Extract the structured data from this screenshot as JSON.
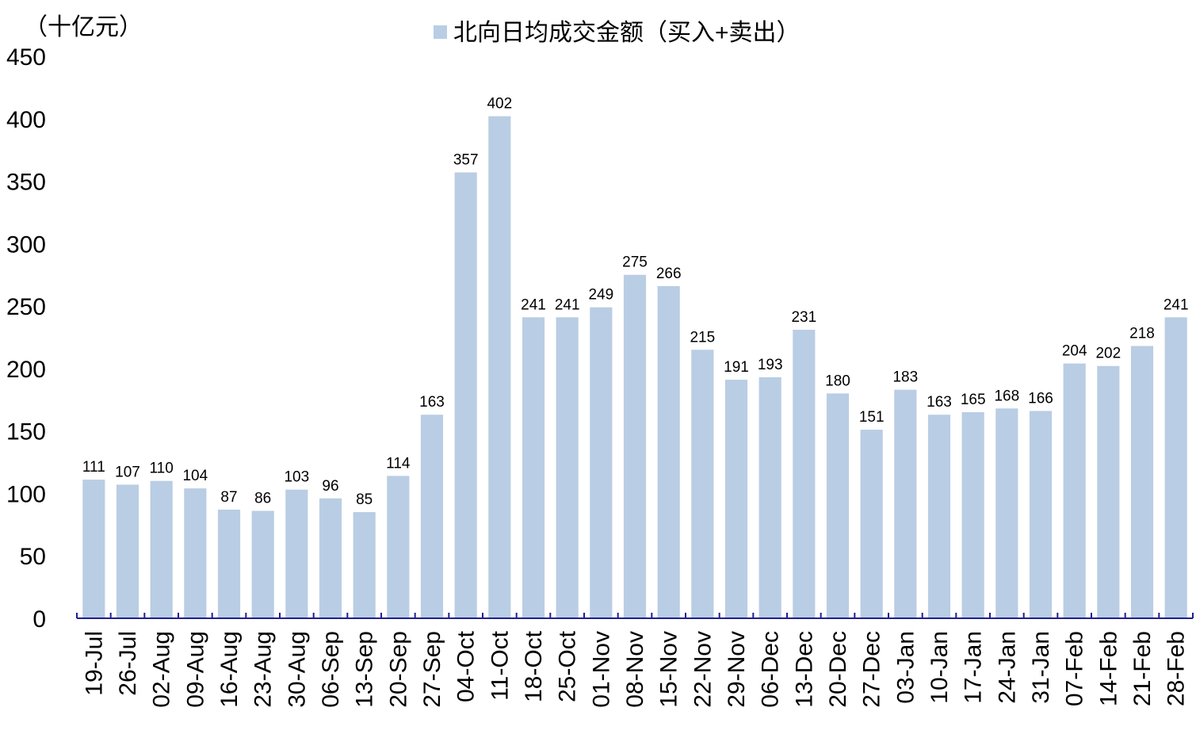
{
  "chart_data": {
    "type": "bar",
    "unit_label": "（十亿元）",
    "legend": {
      "position": "top-center",
      "entries": [
        "北向日均成交金额（买入+卖出）"
      ]
    },
    "categories": [
      "19-Jul",
      "26-Jul",
      "02-Aug",
      "09-Aug",
      "16-Aug",
      "23-Aug",
      "30-Aug",
      "06-Sep",
      "13-Sep",
      "20-Sep",
      "27-Sep",
      "04-Oct",
      "11-Oct",
      "18-Oct",
      "25-Oct",
      "01-Nov",
      "08-Nov",
      "15-Nov",
      "22-Nov",
      "29-Nov",
      "06-Dec",
      "13-Dec",
      "20-Dec",
      "27-Dec",
      "03-Jan",
      "10-Jan",
      "17-Jan",
      "24-Jan",
      "31-Jan",
      "07-Feb",
      "14-Feb",
      "21-Feb",
      "28-Feb"
    ],
    "series": [
      {
        "name": "北向日均成交金额（买入+卖出）",
        "color": "#b9cde4",
        "values": [
          111,
          107,
          110,
          104,
          87,
          86,
          103,
          96,
          85,
          114,
          163,
          357,
          402,
          241,
          241,
          249,
          275,
          266,
          215,
          191,
          193,
          231,
          180,
          151,
          183,
          163,
          165,
          168,
          166,
          204,
          202,
          218,
          241
        ]
      }
    ],
    "ylim": [
      0,
      450
    ],
    "yticks": [
      0,
      50,
      100,
      150,
      200,
      250,
      300,
      350,
      400,
      450
    ],
    "grid": false,
    "axis_color": "#1f1f8f",
    "data_labels": true
  }
}
